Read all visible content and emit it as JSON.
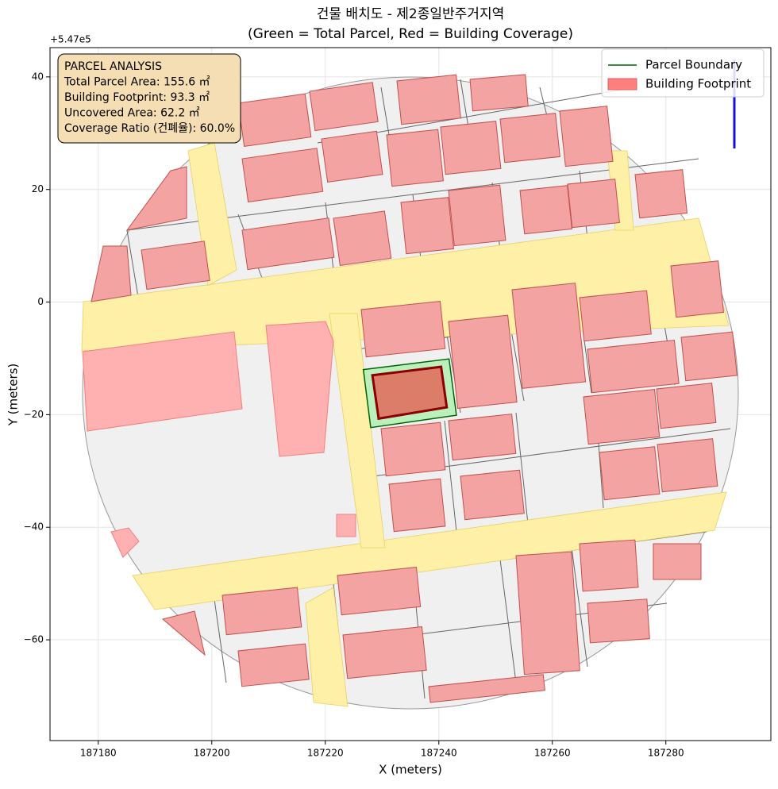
{
  "chart_data": {
    "type": "map",
    "title": "건물 배치도 - 제2종일반주거지역",
    "subtitle": "(Green = Total Parcel, Red = Building Coverage)",
    "x_label": "X (meters)",
    "y_label": "Y (meters)",
    "y_offset_label": "+5.47e5",
    "xlim": [
      187171.5,
      187298.5
    ],
    "ylim": [
      -77.9,
      45.2
    ],
    "xticks": [
      187180,
      187200,
      187220,
      187240,
      187260,
      187280
    ],
    "yticks": [
      40,
      20,
      0,
      {
        "value": -20,
        "label": "−20"
      },
      {
        "value": -40,
        "label": "−40"
      },
      {
        "value": -60,
        "label": "−60"
      }
    ],
    "grid": true,
    "legend": "upper right",
    "series": [
      {
        "name": "Parcel Boundary",
        "color": "#006400",
        "fill": "#90ee90",
        "x": [
          187226.7,
          187241.8,
          187243.1,
          187228.0
        ],
        "y": [
          -12.0,
          -10.1,
          -20.1,
          -22.3
        ]
      },
      {
        "name": "Building Footprint",
        "color": "#8b0000",
        "fill": "#e07060",
        "legend_color": "#ff7f7f",
        "x": [
          187228.3,
          187240.4,
          187241.4,
          187229.4
        ],
        "y": [
          -13.0,
          -11.5,
          -18.7,
          -20.7
        ]
      }
    ],
    "annotation": [
      "PARCEL ANALYSIS",
      "Total Parcel Area: 155.6 ㎡",
      "Building Footprint: 93.3 ㎡",
      "Uncovered Area: 62.2 ㎡",
      "Coverage Ratio (건폐율): 60.0%"
    ]
  }
}
